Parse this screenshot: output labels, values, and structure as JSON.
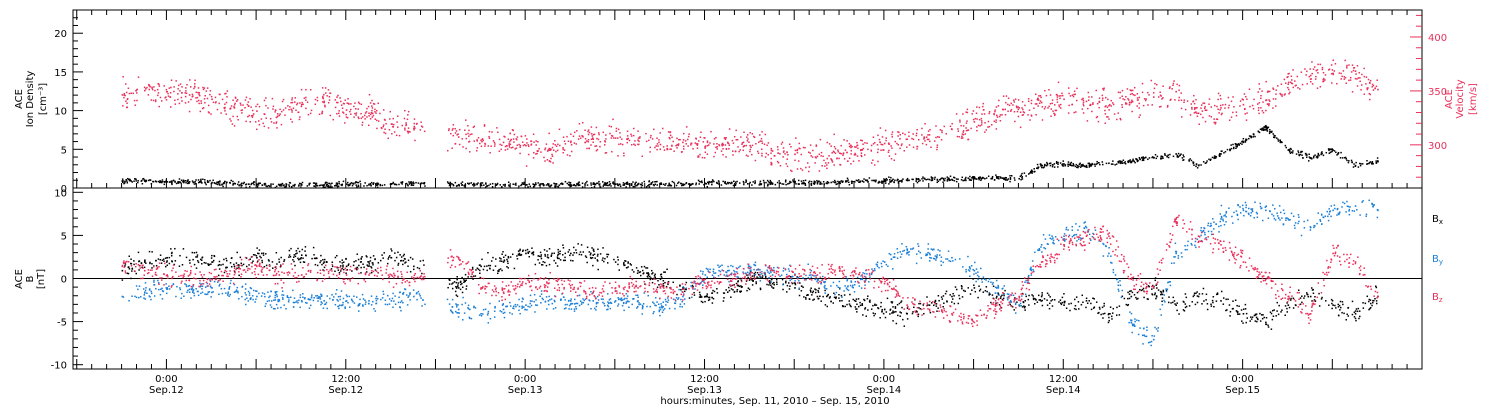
{
  "chart_data": [
    {
      "type": "scatter",
      "panel": "top",
      "ylabel_left": [
        "ACE",
        "Ion Density",
        "[cm⁻³]"
      ],
      "ylabel_right": [
        "ACE",
        "Velocity",
        "[km/s]"
      ],
      "ylim_left": [
        0,
        23
      ],
      "ylim_right": [
        260,
        425
      ],
      "yticks_left": [
        0,
        5,
        10,
        15,
        20
      ],
      "yticks_right": [
        300,
        350,
        400
      ],
      "series": [
        {
          "name": "",
          "axis": "left",
          "color": "#000000",
          "x": [
            -6,
            -3,
            0,
            3,
            6,
            9,
            12,
            15,
            18,
            21,
            24,
            27,
            30,
            33,
            39,
            42,
            45,
            48,
            51,
            54,
            57,
            60,
            63,
            66,
            69,
            72,
            75,
            78,
            81,
            84,
            87,
            90,
            93,
            96,
            99,
            102,
            105,
            108,
            111,
            114,
            117,
            120,
            123,
            126,
            129,
            132,
            135,
            138,
            141,
            144,
            147,
            150,
            153,
            156,
            159,
            162
          ],
          "y": [
            1.0,
            1.0,
            0.9,
            0.9,
            0.8,
            0.7,
            0.6,
            0.5,
            0.5,
            0.5,
            0.6,
            0.5,
            0.6,
            0.7,
            0.5,
            0.5,
            0.5,
            0.5,
            0.5,
            0.5,
            0.6,
            0.6,
            0.6,
            0.6,
            0.6,
            0.7,
            0.8,
            0.8,
            0.7,
            0.8,
            0.8,
            0.9,
            1.0,
            1.0,
            1.1,
            1.2,
            1.2,
            1.3,
            1.4,
            1.3,
            3.0,
            3.2,
            3.0,
            3.3,
            3.5,
            4.0,
            4.5,
            3.0,
            4.5,
            6.0,
            8.0,
            5.0,
            4.0,
            5.0,
            3.0,
            3.5
          ]
        },
        {
          "name": "",
          "axis": "right",
          "color": "#e8305a",
          "x": [
            -6,
            -3,
            0,
            3,
            6,
            9,
            12,
            15,
            18,
            21,
            24,
            27,
            30,
            33,
            39,
            42,
            45,
            48,
            51,
            54,
            57,
            60,
            63,
            66,
            69,
            72,
            75,
            78,
            81,
            84,
            87,
            90,
            93,
            96,
            99,
            102,
            105,
            108,
            111,
            114,
            117,
            120,
            123,
            126,
            129,
            132,
            135,
            138,
            141,
            144,
            147,
            150,
            153,
            156,
            159,
            162
          ],
          "y": [
            347,
            351,
            350,
            347,
            343,
            335,
            332,
            328,
            338,
            340,
            333,
            330,
            320,
            316,
            308,
            305,
            303,
            300,
            296,
            303,
            306,
            307,
            305,
            301,
            303,
            299,
            303,
            300,
            295,
            292,
            290,
            293,
            296,
            302,
            306,
            310,
            315,
            322,
            328,
            335,
            340,
            343,
            341,
            337,
            340,
            345,
            350,
            330,
            335,
            338,
            342,
            357,
            365,
            367,
            369,
            352
          ]
        }
      ]
    },
    {
      "type": "scatter",
      "panel": "bottom",
      "ylabel": [
        "ACE",
        "B",
        "[nT]"
      ],
      "ylim": [
        -10.5,
        10.5
      ],
      "yticks": [
        -10,
        -5,
        0,
        5,
        10
      ],
      "zero_line": true,
      "series": [
        {
          "name": "B_x",
          "color": "#000000",
          "x": [
            -6,
            -3,
            0,
            3,
            6,
            9,
            12,
            15,
            18,
            21,
            24,
            27,
            30,
            33,
            39,
            42,
            45,
            48,
            51,
            54,
            57,
            60,
            63,
            66,
            69,
            72,
            75,
            78,
            81,
            84,
            87,
            90,
            93,
            96,
            99,
            102,
            105,
            108,
            111,
            114,
            117,
            120,
            123,
            126,
            129,
            132,
            135,
            138,
            141,
            144,
            147,
            150,
            153,
            156,
            159,
            162
          ],
          "y": [
            1.0,
            2.0,
            2.5,
            2.2,
            2.0,
            1.5,
            2.5,
            2.0,
            2.8,
            2.0,
            1.5,
            2.0,
            2.5,
            1.5,
            -1.0,
            1.5,
            2.0,
            3.0,
            2.5,
            3.0,
            2.8,
            2.0,
            1.0,
            0.0,
            -1.0,
            -2.0,
            -1.5,
            0.0,
            -0.5,
            -1.0,
            -2.0,
            -2.5,
            -3.0,
            -3.5,
            -4.0,
            -3.0,
            -2.0,
            -1.0,
            -2.0,
            -3.0,
            -2.0,
            -3.0,
            -2.5,
            -4.0,
            -2.0,
            -1.0,
            -3.0,
            -2.0,
            -2.5,
            -4.0,
            -5.0,
            -3.0,
            -2.0,
            -3.0,
            -4.0,
            -2.0
          ]
        },
        {
          "name": "B_y",
          "color": "#1a7fd6",
          "x": [
            -6,
            -3,
            0,
            3,
            6,
            9,
            12,
            15,
            18,
            21,
            24,
            27,
            30,
            33,
            39,
            42,
            45,
            48,
            51,
            54,
            57,
            60,
            63,
            66,
            69,
            72,
            75,
            78,
            81,
            84,
            87,
            90,
            93,
            96,
            99,
            102,
            105,
            108,
            111,
            114,
            117,
            120,
            123,
            126,
            129,
            132,
            135,
            138,
            141,
            144,
            147,
            150,
            153,
            156,
            159,
            162
          ],
          "y": [
            -2.0,
            -1.5,
            -1.0,
            -1.5,
            -1.0,
            -1.5,
            -2.0,
            -2.5,
            -2.5,
            -2.5,
            -2.5,
            -2.5,
            -2.5,
            -2.0,
            -3.5,
            -4.0,
            -3.5,
            -3.0,
            -2.5,
            -2.5,
            -2.5,
            -2.5,
            -2.5,
            -3.5,
            -2.0,
            0.5,
            1.0,
            1.0,
            0.5,
            0.5,
            0.0,
            -1.0,
            0.0,
            2.0,
            3.5,
            3.0,
            2.5,
            1.0,
            -1.0,
            -3.0,
            4.0,
            5.0,
            6.0,
            3.0,
            -5.0,
            -7.0,
            3.0,
            5.0,
            7.0,
            8.0,
            8.0,
            7.0,
            6.0,
            8.0,
            8.5,
            8.0
          ]
        },
        {
          "name": "B_z",
          "color": "#e8305a",
          "x": [
            -6,
            -3,
            0,
            3,
            6,
            9,
            12,
            15,
            18,
            21,
            24,
            27,
            30,
            33,
            39,
            42,
            45,
            48,
            51,
            54,
            57,
            60,
            63,
            66,
            69,
            72,
            75,
            78,
            81,
            84,
            87,
            90,
            93,
            96,
            99,
            102,
            105,
            108,
            111,
            114,
            117,
            120,
            123,
            126,
            129,
            132,
            135,
            138,
            141,
            144,
            147,
            150,
            153,
            156,
            159,
            162
          ],
          "y": [
            1.5,
            1.0,
            0.5,
            0.5,
            0.0,
            1.0,
            1.5,
            0.5,
            0.5,
            1.0,
            0.5,
            0.5,
            0.5,
            0.0,
            2.5,
            -1.0,
            -1.5,
            -0.5,
            -0.5,
            -1.0,
            -1.5,
            -1.0,
            -1.0,
            -1.0,
            -1.5,
            0.0,
            0.0,
            0.5,
            1.0,
            0.5,
            0.5,
            1.0,
            0.5,
            0.0,
            -3.0,
            -3.5,
            -4.0,
            -5.0,
            -3.0,
            -2.0,
            2.0,
            4.0,
            5.0,
            5.0,
            0.0,
            -1.0,
            7.0,
            5.0,
            4.0,
            2.0,
            0.0,
            -2.0,
            -4.0,
            3.0,
            2.0,
            -2.0
          ]
        }
      ],
      "legend": [
        "B_x",
        "B_y",
        "B_z"
      ]
    }
  ],
  "x_axis": {
    "range_hours": [
      -12.5,
      168
    ],
    "ticks": [
      {
        "hour": 0,
        "time": "0:00",
        "date": "Sep.12"
      },
      {
        "hour": 24,
        "time": "12:00",
        "date": "Sep.12"
      },
      {
        "hour": 48,
        "time": "0:00",
        "date": "Sep.13"
      },
      {
        "hour": 72,
        "time": "12:00",
        "date": "Sep.13"
      },
      {
        "hour": 96,
        "time": "0:00",
        "date": "Sep.14"
      },
      {
        "hour": 120,
        "time": "12:00",
        "date": "Sep.14"
      },
      {
        "hour": 144,
        "time": "0:00",
        "date": "Sep.15"
      }
    ],
    "title": "hours:minutes, Sep. 11, 2010 – Sep. 15, 2010"
  },
  "data_gap_hours": [
    34.5,
    37.5
  ],
  "colors": {
    "black": "#000000",
    "red": "#e8305a",
    "blue": "#1a7fd6"
  }
}
